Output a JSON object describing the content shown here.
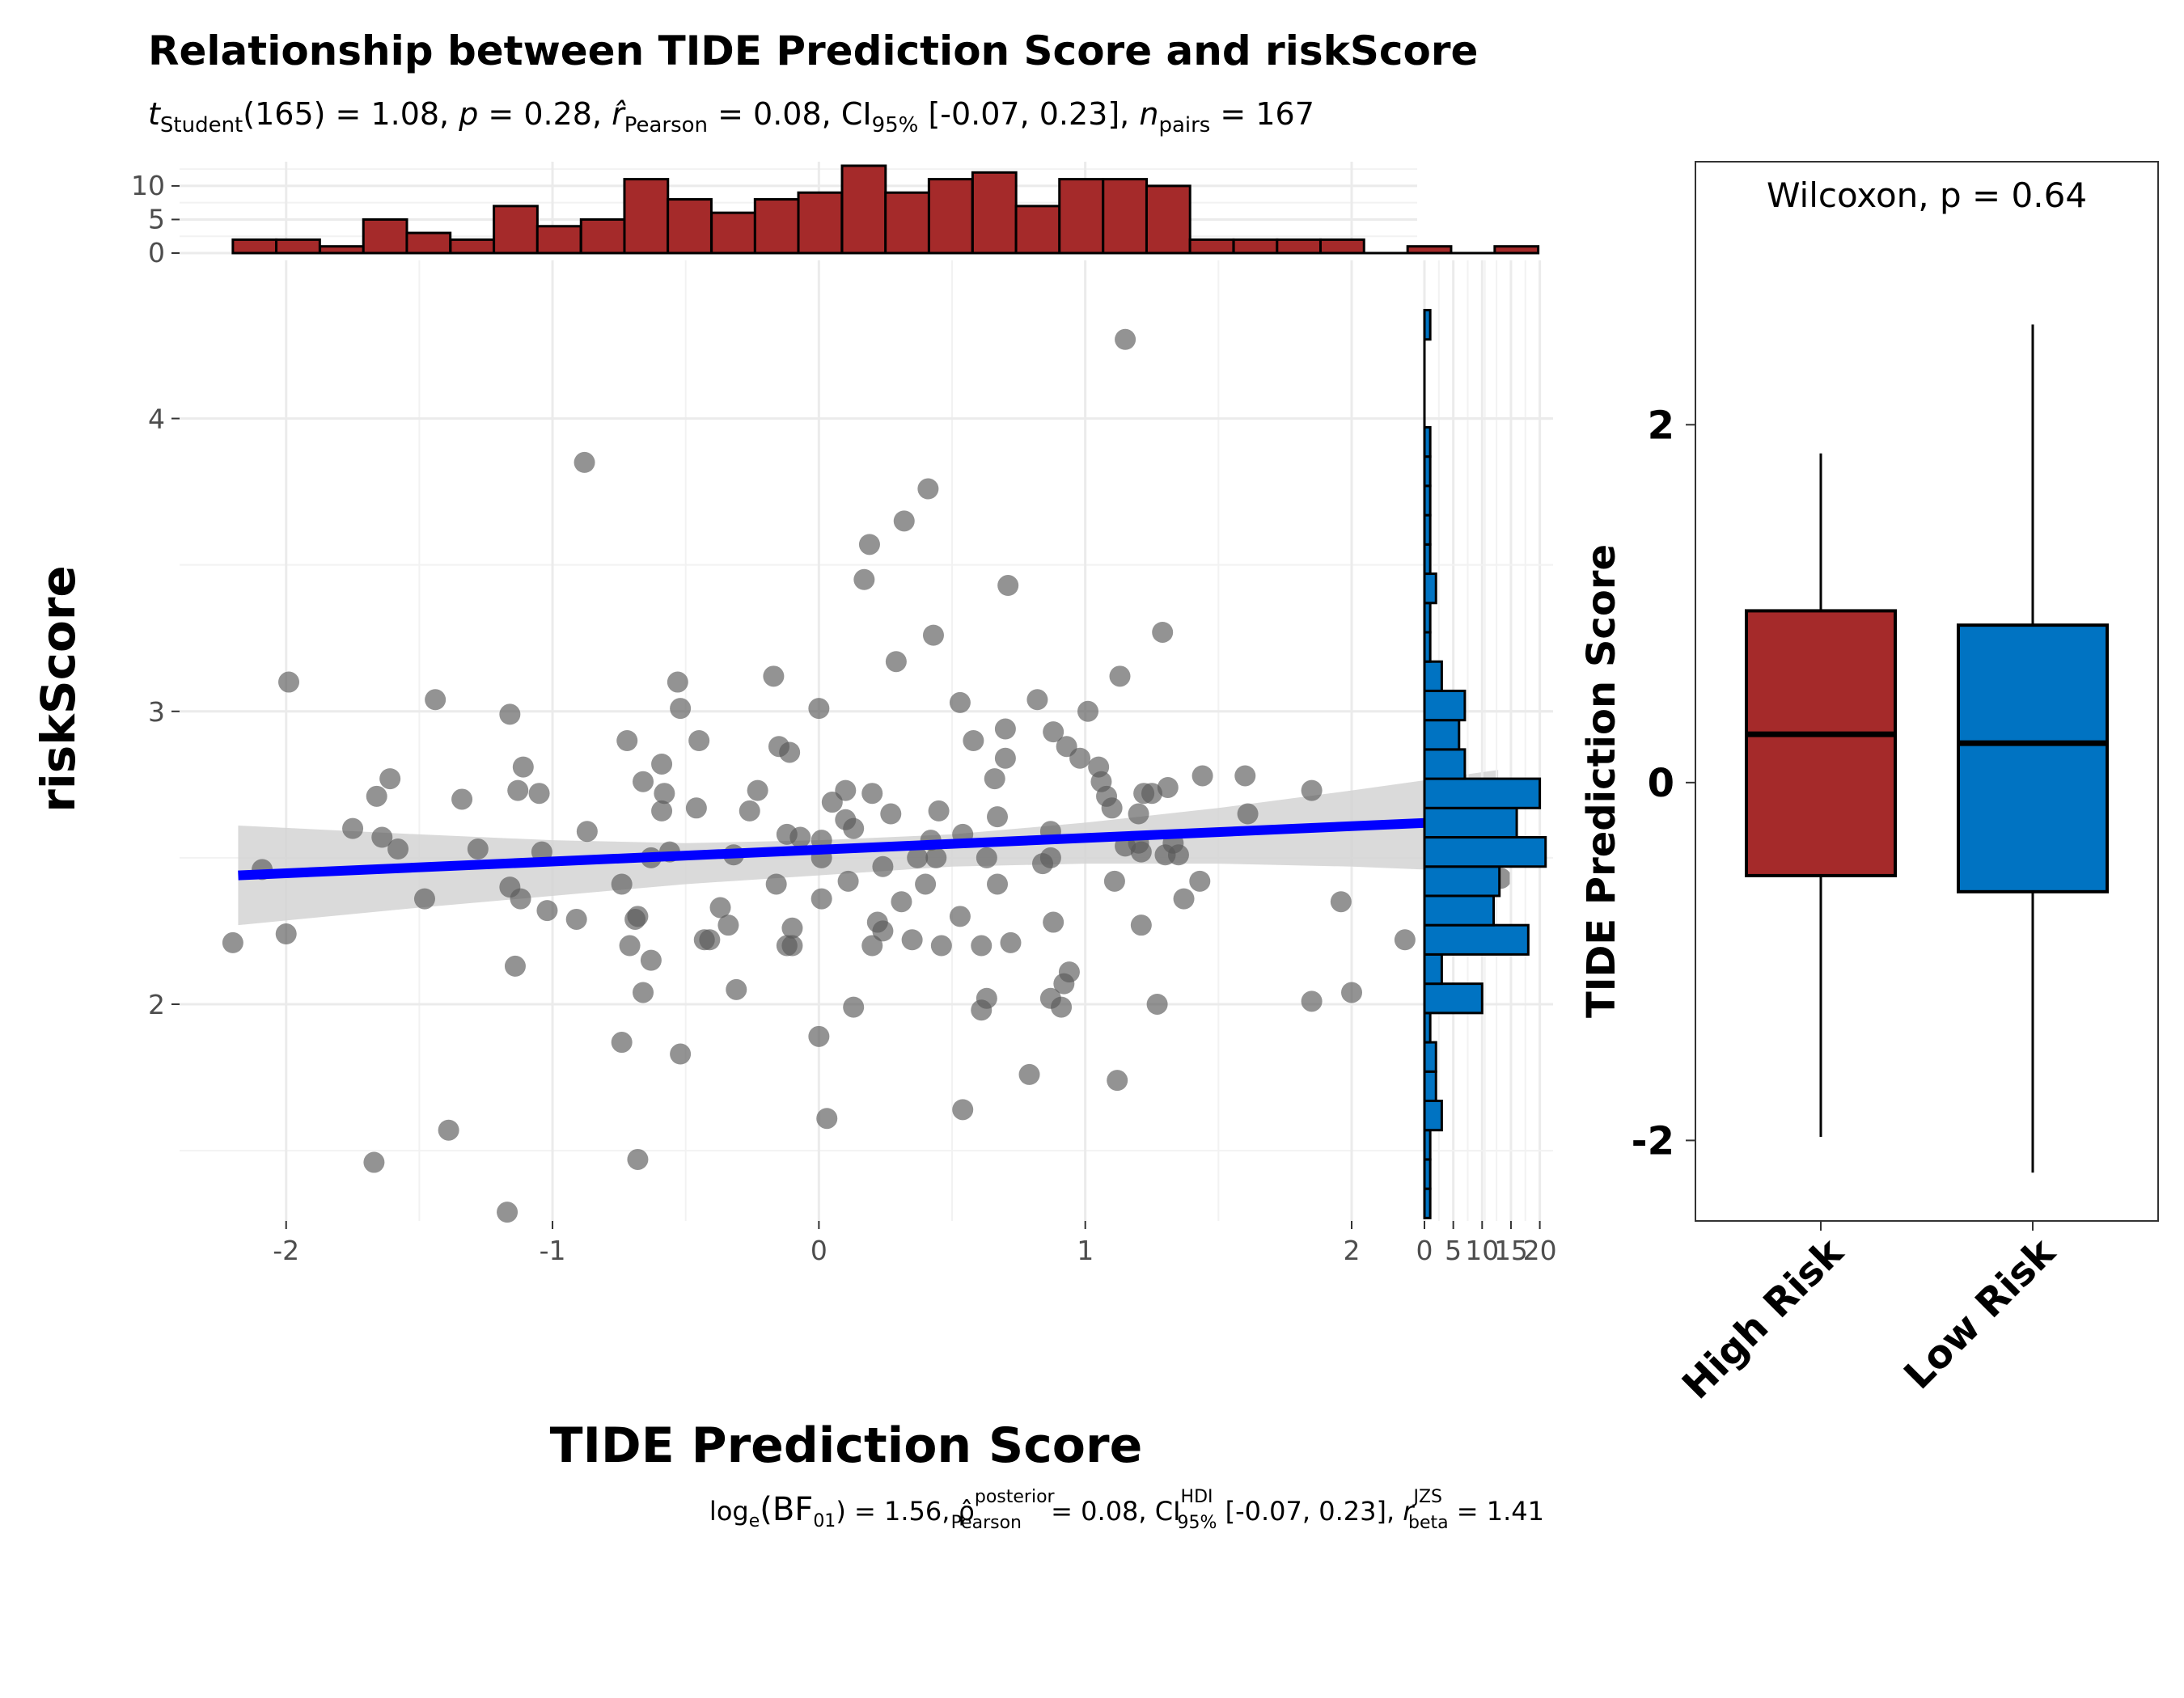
{
  "chart_data": [
    {
      "type": "scatter",
      "title": "Relationship between TIDE Prediction Score and riskScore",
      "subtitle": {
        "t_label": "t",
        "t_sub": "Student",
        "t_val": "(165) = 1.08, ",
        "p_label": "p",
        "p_val": " = 0.28, ",
        "r_label": "r̂",
        "r_sub": "Pearson",
        "r_val": " = 0.08, ",
        "ci_label": "CI",
        "ci_sub": "95%",
        "ci_val": " [-0.07, 0.23], ",
        "n_label": "n",
        "n_sub": "pairs",
        "n_val": " = 167"
      },
      "caption": {
        "log_label": "log",
        "log_sub": "e",
        "bf_label": "(BF",
        "bf_sub": "01",
        "bf_val": ") = 1.56, ",
        "rho_label": "ρ̂",
        "rho_sup": "posterior",
        "rho_sub": "Pearson",
        "rho_val": " = 0.08, ",
        "ci_label": "CI",
        "ci_sup": "HDI",
        "ci_sub": "95%",
        "ci_val": " [-0.07, 0.23], ",
        "rb_label": "r",
        "rb_sup": "JZS",
        "rb_sub": "beta",
        "rb_val": " = 1.41"
      },
      "xlabel": "TIDE Prediction Score",
      "ylabel": "riskScore",
      "xlim": [
        -2.4,
        2.75
      ],
      "ylim": [
        1.26,
        4.54
      ],
      "x_ticks": [
        -2,
        -1,
        0,
        1,
        2
      ],
      "x_tick_labels": [
        "-2",
        "-1",
        "0",
        "1",
        "2"
      ],
      "y_ticks": [
        2,
        3,
        4
      ],
      "y_tick_labels": [
        "2",
        "3",
        "4"
      ],
      "grid": true,
      "point_color": "#595959",
      "fit_line": {
        "x": [
          -2.18,
          2.55
        ],
        "y": [
          2.44,
          2.63
        ],
        "color": "#0000ff"
      },
      "confidence_band": {
        "x": [
          -2.18,
          -1.5,
          -1.0,
          -0.5,
          0.0,
          0.5,
          1.0,
          1.5,
          2.0,
          2.55
        ],
        "lower": [
          2.27,
          2.33,
          2.37,
          2.41,
          2.44,
          2.47,
          2.48,
          2.48,
          2.47,
          2.45
        ],
        "upper": [
          2.61,
          2.58,
          2.56,
          2.55,
          2.56,
          2.58,
          2.62,
          2.67,
          2.73,
          2.8
        ],
        "color": "#d3d3d3"
      },
      "points": [
        [
          1.15,
          4.27
        ],
        [
          -0.88,
          3.85
        ],
        [
          0.41,
          3.76
        ],
        [
          0.32,
          3.65
        ],
        [
          0.19,
          3.57
        ],
        [
          0.17,
          3.45
        ],
        [
          0.71,
          3.43
        ],
        [
          1.29,
          3.27
        ],
        [
          0.43,
          3.26
        ],
        [
          0.29,
          3.17
        ],
        [
          -1.99,
          3.1
        ],
        [
          -0.53,
          3.1
        ],
        [
          -0.17,
          3.12
        ],
        [
          1.13,
          3.12
        ],
        [
          -1.44,
          3.04
        ],
        [
          0.82,
          3.04
        ],
        [
          0.53,
          3.03
        ],
        [
          -0.0,
          3.01
        ],
        [
          -0.52,
          3.01
        ],
        [
          -1.16,
          2.99
        ],
        [
          1.01,
          3.0
        ],
        [
          0.7,
          2.94
        ],
        [
          0.88,
          2.93
        ],
        [
          -0.72,
          2.9
        ],
        [
          -0.45,
          2.9
        ],
        [
          0.58,
          2.9
        ],
        [
          0.93,
          2.88
        ],
        [
          -0.15,
          2.88
        ],
        [
          0.98,
          2.84
        ],
        [
          -0.11,
          2.86
        ],
        [
          0.7,
          2.84
        ],
        [
          -0.59,
          2.82
        ],
        [
          -1.11,
          2.81
        ],
        [
          1.05,
          2.81
        ],
        [
          -1.61,
          2.77
        ],
        [
          1.06,
          2.76
        ],
        [
          1.44,
          2.78
        ],
        [
          1.6,
          2.78
        ],
        [
          -0.66,
          2.76
        ],
        [
          0.66,
          2.77
        ],
        [
          -1.13,
          2.73
        ],
        [
          -0.23,
          2.73
        ],
        [
          -1.66,
          2.71
        ],
        [
          -1.05,
          2.72
        ],
        [
          -1.34,
          2.7
        ],
        [
          0.1,
          2.73
        ],
        [
          0.2,
          2.72
        ],
        [
          1.22,
          2.72
        ],
        [
          1.31,
          2.74
        ],
        [
          1.25,
          2.72
        ],
        [
          1.08,
          2.71
        ],
        [
          -0.58,
          2.72
        ],
        [
          0.05,
          2.69
        ],
        [
          -0.46,
          2.67
        ],
        [
          -0.59,
          2.66
        ],
        [
          0.27,
          2.65
        ],
        [
          0.45,
          2.66
        ],
        [
          1.1,
          2.67
        ],
        [
          1.2,
          2.65
        ],
        [
          1.61,
          2.65
        ],
        [
          1.85,
          2.73
        ],
        [
          -0.26,
          2.66
        ],
        [
          0.1,
          2.63
        ],
        [
          0.67,
          2.64
        ],
        [
          0.13,
          2.6
        ],
        [
          0.54,
          2.58
        ],
        [
          0.87,
          2.59
        ],
        [
          -1.75,
          2.6
        ],
        [
          -0.87,
          2.59
        ],
        [
          -0.12,
          2.58
        ],
        [
          -0.07,
          2.57
        ],
        [
          0.01,
          2.56
        ],
        [
          0.42,
          2.56
        ],
        [
          1.2,
          2.55
        ],
        [
          1.33,
          2.55
        ],
        [
          1.15,
          2.54
        ],
        [
          1.3,
          2.51
        ],
        [
          -1.64,
          2.57
        ],
        [
          -1.58,
          2.53
        ],
        [
          -1.28,
          2.53
        ],
        [
          -1.04,
          2.52
        ],
        [
          -0.56,
          2.52
        ],
        [
          -0.32,
          2.51
        ],
        [
          0.01,
          2.5
        ],
        [
          0.37,
          2.5
        ],
        [
          0.44,
          2.5
        ],
        [
          0.87,
          2.5
        ],
        [
          1.21,
          2.52
        ],
        [
          -2.09,
          2.46
        ],
        [
          0.24,
          2.47
        ],
        [
          -0.63,
          2.5
        ],
        [
          0.63,
          2.5
        ],
        [
          0.84,
          2.48
        ],
        [
          1.35,
          2.51
        ],
        [
          -0.74,
          2.41
        ],
        [
          -1.16,
          2.4
        ],
        [
          -0.16,
          2.41
        ],
        [
          0.11,
          2.42
        ],
        [
          0.4,
          2.41
        ],
        [
          0.67,
          2.41
        ],
        [
          1.11,
          2.42
        ],
        [
          1.43,
          2.42
        ],
        [
          -1.48,
          2.36
        ],
        [
          -1.12,
          2.36
        ],
        [
          -1.02,
          2.32
        ],
        [
          -0.37,
          2.33
        ],
        [
          0.01,
          2.36
        ],
        [
          0.31,
          2.35
        ],
        [
          -0.91,
          2.29
        ],
        [
          -0.68,
          2.3
        ],
        [
          0.53,
          2.3
        ],
        [
          0.88,
          2.28
        ],
        [
          1.37,
          2.36
        ],
        [
          1.96,
          2.35
        ],
        [
          -2.0,
          2.24
        ],
        [
          -0.1,
          2.26
        ],
        [
          0.22,
          2.28
        ],
        [
          0.24,
          2.25
        ],
        [
          1.21,
          2.27
        ],
        [
          -0.41,
          2.22
        ],
        [
          -0.69,
          2.29
        ],
        [
          -0.34,
          2.27
        ],
        [
          -0.43,
          2.22
        ],
        [
          -0.1,
          2.2
        ],
        [
          0.2,
          2.2
        ],
        [
          0.35,
          2.22
        ],
        [
          0.61,
          2.2
        ],
        [
          0.72,
          2.21
        ],
        [
          0.46,
          2.2
        ],
        [
          -2.2,
          2.21
        ],
        [
          -0.71,
          2.2
        ],
        [
          -0.63,
          2.15
        ],
        [
          -0.12,
          2.2
        ],
        [
          0.92,
          2.07
        ],
        [
          0.94,
          2.11
        ],
        [
          2.2,
          2.22
        ],
        [
          -1.14,
          2.13
        ],
        [
          -0.31,
          2.05
        ],
        [
          -0.66,
          2.04
        ],
        [
          0.63,
          2.02
        ],
        [
          0.87,
          2.02
        ],
        [
          0.13,
          1.99
        ],
        [
          0.61,
          1.98
        ],
        [
          0.91,
          1.99
        ],
        [
          1.27,
          2.0
        ],
        [
          1.85,
          2.01
        ],
        [
          2.0,
          2.04
        ],
        [
          -0.74,
          1.87
        ],
        [
          -0.52,
          1.83
        ],
        [
          0.0,
          1.89
        ],
        [
          0.79,
          1.76
        ],
        [
          1.12,
          1.74
        ],
        [
          -1.39,
          1.57
        ],
        [
          0.03,
          1.61
        ],
        [
          0.54,
          1.64
        ],
        [
          -1.67,
          1.46
        ],
        [
          -0.68,
          1.47
        ],
        [
          -1.17,
          1.29
        ],
        [
          2.56,
          2.43
        ]
      ]
    },
    {
      "type": "bar",
      "title": "",
      "description": "marginal histogram of TIDE Prediction Score (top)",
      "color": "#a52a2a",
      "bin_starts": [
        -2.2,
        -2.037,
        -1.873,
        -1.71,
        -1.547,
        -1.383,
        -1.22,
        -1.057,
        -0.893,
        -0.73,
        -0.567,
        -0.403,
        -0.24,
        -0.077,
        0.087,
        0.25,
        0.413,
        0.577,
        0.74,
        0.903,
        1.067,
        1.23,
        1.393,
        1.557,
        1.72,
        1.883,
        2.047,
        2.21,
        2.373,
        2.537
      ],
      "bin_width": 0.1633,
      "values": [
        2,
        2,
        1,
        5,
        3,
        2,
        7,
        4,
        5,
        11,
        8,
        6,
        8,
        9,
        13,
        9,
        11,
        12,
        7,
        11,
        11,
        10,
        2,
        2,
        2,
        2,
        0,
        1,
        0,
        1
      ],
      "y_ticks": [
        0,
        5,
        10
      ],
      "y_tick_labels": [
        "0",
        "5",
        "10"
      ],
      "ylim": [
        0,
        13.6
      ]
    },
    {
      "type": "bar",
      "title": "",
      "description": "marginal histogram of riskScore (right)",
      "color": "#0073c2",
      "bin_starts": [
        1.27,
        1.37,
        1.47,
        1.57,
        1.67,
        1.77,
        1.87,
        1.97,
        2.07,
        2.17,
        2.27,
        2.37,
        2.47,
        2.57,
        2.67,
        2.77,
        2.87,
        2.97,
        3.07,
        3.17,
        3.27,
        3.37,
        3.47,
        3.57,
        3.67,
        3.77,
        3.87,
        3.97,
        4.07,
        4.17,
        4.27
      ],
      "bin_width": 0.1,
      "values": [
        1,
        1,
        1,
        3,
        2,
        2,
        1,
        10,
        3,
        18,
        12,
        13,
        21,
        16,
        20,
        7,
        6,
        7,
        3,
        1,
        1,
        2,
        1,
        1,
        1,
        1,
        1,
        0,
        0,
        0,
        1
      ],
      "x_ticks": [
        0,
        5,
        10,
        15,
        20
      ],
      "x_tick_labels": [
        "0",
        "5",
        "10",
        "15",
        "20"
      ],
      "xlim": [
        0,
        22.3
      ]
    },
    {
      "type": "box",
      "title": "",
      "annotation": "Wilcoxon, p = 0.64",
      "ylabel": "TIDE Prediction Score",
      "ylim": [
        -2.45,
        3.47
      ],
      "y_ticks": [
        -2,
        0,
        2
      ],
      "y_tick_labels": [
        "-2",
        "0",
        "2"
      ],
      "categories": [
        "High Risk",
        "Low Risk"
      ],
      "boxes": [
        {
          "name": "High Risk",
          "min": -1.98,
          "q1": -0.52,
          "median": 0.27,
          "q3": 0.96,
          "max": 1.84,
          "color": "#a52a2a"
        },
        {
          "name": "Low Risk",
          "min": -2.18,
          "q1": -0.61,
          "median": 0.22,
          "q3": 0.88,
          "max": 2.56,
          "color": "#0073c2"
        }
      ]
    }
  ]
}
